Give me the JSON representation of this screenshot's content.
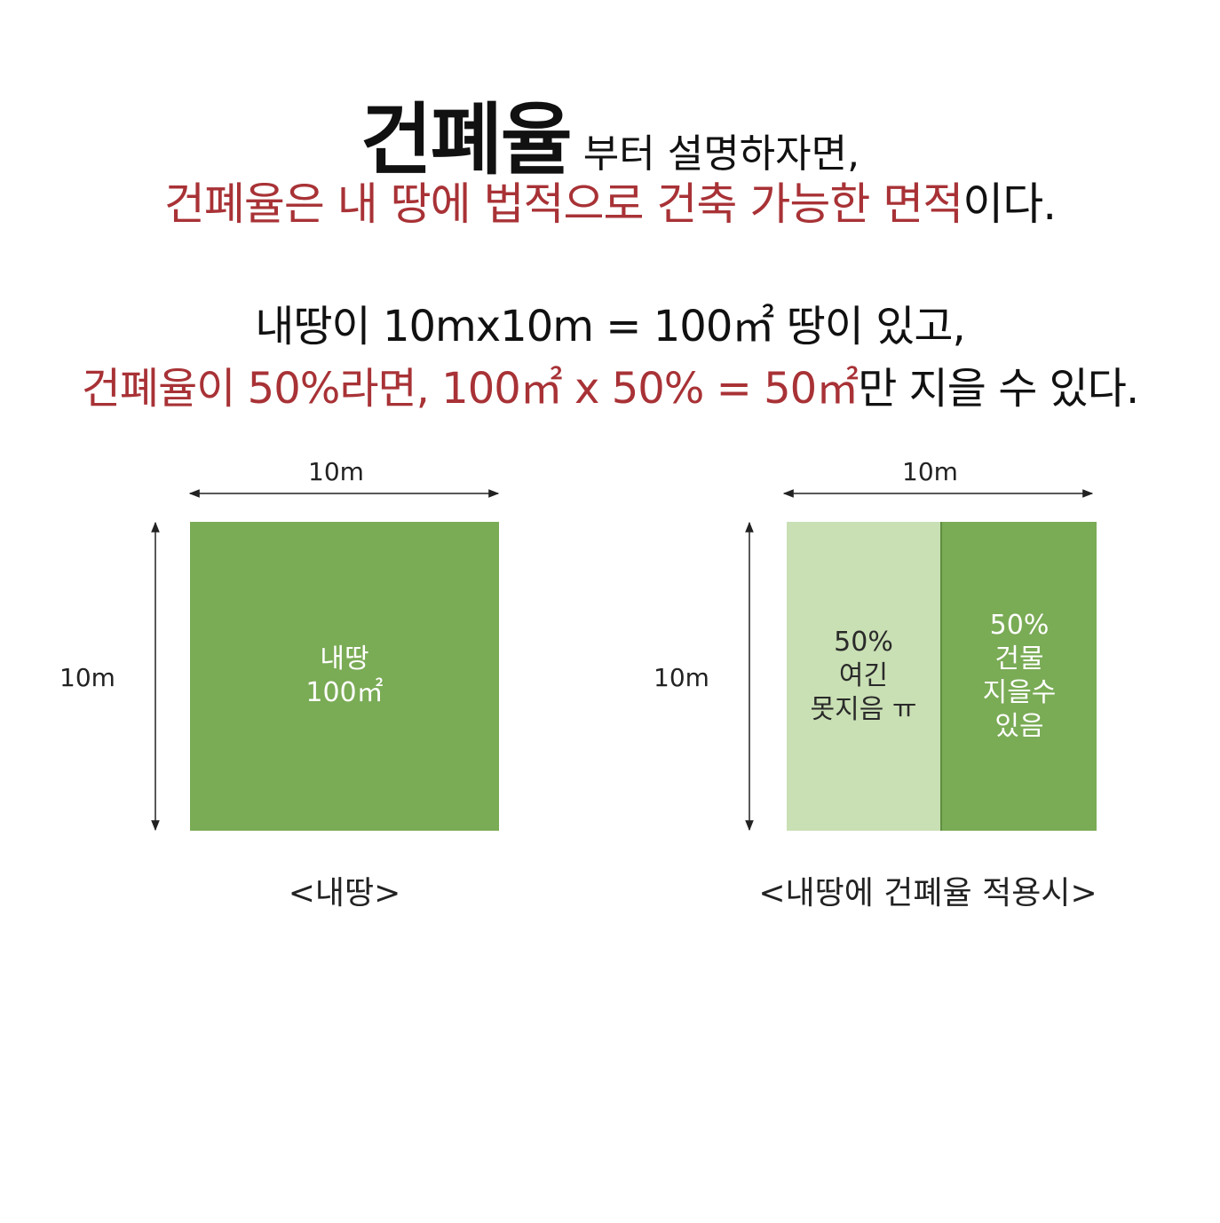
{
  "heading": {
    "title_big": "건폐율",
    "title_rest": "부터 설명하자면,"
  },
  "definition": {
    "red_part": "건폐율은 내 땅에 법적으로 건축 가능한 면적",
    "black_part": "이다."
  },
  "example": {
    "line1": "내땅이 10mx10m = 100㎡ 땅이 있고,",
    "line2_red": "건폐율이 50%라면, 100㎡ x 50% =  50㎡",
    "line2_black": "만 지을 수 있다."
  },
  "diagram_left": {
    "width_label": "10m",
    "height_label": "10m",
    "box_line1": "내땅",
    "box_line2": "100㎡",
    "caption": "<내땅>"
  },
  "diagram_right": {
    "width_label": "10m",
    "height_label": "10m",
    "left_half_line1": "50%",
    "left_half_line2": "여긴",
    "left_half_line3": "못지음 ㅠ",
    "right_half_line1": "50%",
    "right_half_line2": "건물",
    "right_half_line3": "지을수",
    "right_half_line4": "있음",
    "caption": "<내땅에 건폐율 적용시>"
  },
  "colors": {
    "accent_red": "#a83236",
    "land_green": "#7aab55",
    "unbuildable_green": "#c9dfb4"
  }
}
